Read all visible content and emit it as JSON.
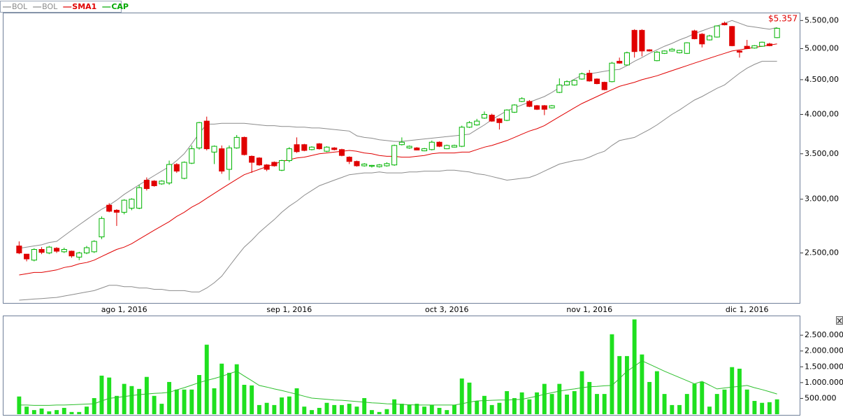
{
  "chart_data": [
    {
      "type": "candlestick",
      "log_scale": true,
      "grid": false,
      "annotation": "$5.357",
      "categories": [
        null,
        null,
        null,
        null,
        null,
        null,
        null,
        null,
        null,
        null,
        null,
        null,
        null,
        null,
        "ago 1, 2016",
        null,
        null,
        null,
        null,
        null,
        null,
        null,
        null,
        null,
        null,
        null,
        null,
        null,
        null,
        null,
        null,
        null,
        null,
        null,
        null,
        null,
        "sep 1, 2016",
        null,
        null,
        null,
        null,
        null,
        null,
        null,
        null,
        null,
        null,
        null,
        null,
        null,
        null,
        null,
        null,
        null,
        null,
        null,
        null,
        "oct 3, 2016",
        null,
        null,
        null,
        null,
        null,
        null,
        null,
        null,
        null,
        null,
        null,
        null,
        null,
        null,
        null,
        null,
        null,
        null,
        "nov 1, 2016",
        null,
        null,
        null,
        null,
        null,
        null,
        null,
        null,
        null,
        null,
        null,
        null,
        null,
        null,
        null,
        null,
        null,
        null,
        null,
        null,
        "dic 1, 2016",
        null,
        null,
        null,
        null
      ],
      "candles": {
        "name": "CAP",
        "color": "#00a800",
        "up_color": "#00b400",
        "down_color": "#e00000",
        "open": [
          2560,
          2490,
          2440,
          2530,
          2500,
          2540,
          2510,
          2515,
          2465,
          2500,
          2510,
          2640,
          2940,
          2890,
          2870,
          2910,
          2910,
          3200,
          3190,
          3160,
          3170,
          3375,
          3220,
          3390,
          3570,
          3910,
          3520,
          3560,
          3320,
          3570,
          3700,
          3470,
          3450,
          3370,
          3400,
          3310,
          3420,
          3610,
          3610,
          3550,
          3620,
          3530,
          3570,
          3550,
          3460,
          3410,
          3360,
          3355,
          3350,
          3360,
          3370,
          3610,
          3570,
          3570,
          3535,
          3550,
          3640,
          3560,
          3580,
          3590,
          3830,
          3860,
          3950,
          3990,
          3940,
          3920,
          4030,
          4180,
          4180,
          4120,
          4120,
          4090,
          4310,
          4420,
          4420,
          4510,
          4600,
          4510,
          4460,
          4470,
          4790,
          4730,
          5320,
          5320,
          4980,
          4800,
          4920,
          4960,
          4930,
          4920,
          5310,
          5250,
          5150,
          5200,
          5450,
          5390,
          4960,
          5040,
          5010,
          5040,
          5080,
          5190
        ],
        "high": [
          2600,
          2490,
          2540,
          2550,
          2560,
          2550,
          2545,
          2520,
          2510,
          2560,
          2610,
          2830,
          2960,
          2900,
          3000,
          3010,
          3150,
          3230,
          3200,
          3200,
          3420,
          3390,
          3410,
          3600,
          3900,
          3970,
          3600,
          3600,
          3600,
          3730,
          3710,
          3480,
          3460,
          3380,
          3410,
          3430,
          3580,
          3700,
          3620,
          3590,
          3630,
          3590,
          3580,
          3560,
          3470,
          3420,
          3390,
          3370,
          3380,
          3400,
          3610,
          3700,
          3600,
          3580,
          3570,
          3660,
          3650,
          3610,
          3610,
          3850,
          3910,
          3940,
          4040,
          4010,
          3950,
          4070,
          4140,
          4240,
          4200,
          4130,
          4130,
          4130,
          4520,
          4490,
          4500,
          4610,
          4650,
          4520,
          4470,
          4780,
          4850,
          4950,
          5340,
          5340,
          4990,
          4960,
          4970,
          5010,
          4980,
          5110,
          5330,
          5270,
          5240,
          5410,
          5480,
          5400,
          4970,
          5150,
          5060,
          5120,
          5100,
          5370
        ],
        "low": [
          2490,
          2430,
          2430,
          2490,
          2490,
          2500,
          2500,
          2460,
          2440,
          2490,
          2500,
          2620,
          2870,
          2740,
          2850,
          2890,
          2900,
          3090,
          3130,
          3150,
          3150,
          3280,
          3210,
          3380,
          3550,
          3540,
          3380,
          3270,
          3200,
          3560,
          3480,
          3280,
          3360,
          3300,
          3350,
          3300,
          3400,
          3510,
          3530,
          3540,
          3550,
          3520,
          3540,
          3470,
          3380,
          3350,
          3350,
          3340,
          3340,
          3350,
          3360,
          3600,
          3560,
          3540,
          3530,
          3540,
          3580,
          3555,
          3575,
          3580,
          3820,
          3850,
          3940,
          3900,
          3800,
          3910,
          4020,
          4170,
          4100,
          4060,
          3990,
          4080,
          4300,
          4410,
          4410,
          4500,
          4470,
          4430,
          4340,
          4460,
          4750,
          4720,
          4850,
          4870,
          4950,
          4790,
          4910,
          4950,
          4920,
          4910,
          5160,
          5020,
          5140,
          5190,
          5410,
          5040,
          4850,
          4990,
          5000,
          5030,
          5040,
          5180
        ],
        "close": [
          2500,
          2450,
          2530,
          2505,
          2550,
          2515,
          2530,
          2475,
          2500,
          2545,
          2600,
          2810,
          2880,
          2870,
          2990,
          3000,
          3120,
          3110,
          3140,
          3190,
          3375,
          3300,
          3400,
          3560,
          3890,
          3560,
          3590,
          3300,
          3570,
          3700,
          3490,
          3400,
          3370,
          3320,
          3360,
          3420,
          3560,
          3525,
          3540,
          3580,
          3560,
          3580,
          3550,
          3480,
          3410,
          3360,
          3380,
          3365,
          3370,
          3385,
          3600,
          3640,
          3590,
          3545,
          3560,
          3640,
          3590,
          3600,
          3600,
          3830,
          3890,
          3910,
          4000,
          3910,
          3890,
          4060,
          4130,
          4220,
          4110,
          4070,
          4070,
          4120,
          4420,
          4470,
          4490,
          4590,
          4480,
          4440,
          4350,
          4760,
          4760,
          4930,
          4950,
          4960,
          4960,
          4940,
          4960,
          4990,
          4970,
          5100,
          5170,
          5080,
          5220,
          5400,
          5420,
          5050,
          4940,
          5000,
          5050,
          5110,
          5050,
          5357
        ]
      },
      "series": [
        {
          "name": "BOL",
          "color": "#8c8c8c",
          "values": [
            2540,
            2550,
            2560,
            2570,
            2590,
            2600,
            2650,
            2700,
            2750,
            2800,
            2850,
            2900,
            2940,
            2990,
            3050,
            3100,
            3150,
            3200,
            3250,
            3300,
            3350,
            3420,
            3500,
            3620,
            3750,
            3870,
            3870,
            3880,
            3880,
            3880,
            3880,
            3870,
            3860,
            3850,
            3850,
            3840,
            3840,
            3830,
            3830,
            3820,
            3820,
            3810,
            3800,
            3790,
            3780,
            3720,
            3700,
            3690,
            3670,
            3660,
            3650,
            3650,
            3660,
            3670,
            3680,
            3690,
            3700,
            3710,
            3720,
            3730,
            3740,
            3800,
            3860,
            3930,
            3990,
            4050,
            4090,
            4130,
            4170,
            4210,
            4250,
            4310,
            4380,
            4440,
            4510,
            4570,
            4590,
            4610,
            4630,
            4650,
            4660,
            4720,
            4790,
            4850,
            4920,
            4980,
            5040,
            5090,
            5150,
            5200,
            5260,
            5310,
            5360,
            5400,
            5450,
            5500,
            5450,
            5400,
            5380,
            5360,
            5340,
            5370
          ]
        },
        {
          "name": "BOL",
          "color": "#8c8c8c",
          "values": [
            2130,
            2134,
            2138,
            2142,
            2146,
            2150,
            2160,
            2170,
            2180,
            2190,
            2200,
            2220,
            2240,
            2240,
            2230,
            2230,
            2220,
            2220,
            2210,
            2210,
            2200,
            2200,
            2200,
            2190,
            2190,
            2220,
            2260,
            2310,
            2390,
            2470,
            2550,
            2610,
            2680,
            2740,
            2800,
            2870,
            2930,
            2980,
            3040,
            3090,
            3140,
            3170,
            3200,
            3230,
            3260,
            3270,
            3280,
            3280,
            3290,
            3280,
            3280,
            3280,
            3290,
            3290,
            3300,
            3300,
            3300,
            3310,
            3310,
            3300,
            3290,
            3270,
            3260,
            3240,
            3220,
            3200,
            3210,
            3220,
            3230,
            3260,
            3300,
            3340,
            3380,
            3400,
            3420,
            3430,
            3460,
            3500,
            3530,
            3600,
            3660,
            3680,
            3700,
            3750,
            3800,
            3860,
            3930,
            4000,
            4060,
            4130,
            4200,
            4250,
            4310,
            4370,
            4420,
            4510,
            4600,
            4680,
            4740,
            4790,
            4790,
            4790
          ]
        },
        {
          "name": "SMA1",
          "color": "#e00000",
          "values": [
            2320,
            2330,
            2340,
            2340,
            2350,
            2360,
            2380,
            2390,
            2410,
            2420,
            2440,
            2470,
            2500,
            2530,
            2550,
            2580,
            2620,
            2660,
            2700,
            2740,
            2780,
            2830,
            2870,
            2920,
            2960,
            3010,
            3060,
            3110,
            3160,
            3210,
            3260,
            3290,
            3320,
            3350,
            3380,
            3410,
            3430,
            3450,
            3460,
            3480,
            3500,
            3510,
            3520,
            3530,
            3540,
            3530,
            3510,
            3500,
            3480,
            3470,
            3470,
            3460,
            3460,
            3470,
            3480,
            3500,
            3510,
            3510,
            3510,
            3520,
            3520,
            3550,
            3580,
            3600,
            3630,
            3660,
            3700,
            3740,
            3780,
            3810,
            3850,
            3910,
            3970,
            4030,
            4090,
            4150,
            4200,
            4250,
            4300,
            4350,
            4400,
            4430,
            4460,
            4500,
            4530,
            4560,
            4600,
            4640,
            4680,
            4720,
            4760,
            4800,
            4840,
            4880,
            4920,
            4960,
            4980,
            5000,
            5020,
            5040,
            5060,
            5080
          ]
        }
      ],
      "ylim": [
        2110,
        5650
      ],
      "yticks": [
        {
          "value": 2500,
          "label": "2.500,00"
        },
        {
          "value": 3000,
          "label": "3.000,00"
        },
        {
          "value": 3500,
          "label": "3.500,00"
        },
        {
          "value": 4000,
          "label": "4.000,00"
        },
        {
          "value": 4500,
          "label": "4.500,00"
        },
        {
          "value": 5000,
          "label": "5.000,00"
        },
        {
          "value": 5500,
          "label": "5.500,00"
        }
      ]
    },
    {
      "type": "bar",
      "color": "#1fe01f",
      "grid": false,
      "values": [
        560000,
        240000,
        130000,
        180000,
        90000,
        130000,
        200000,
        70000,
        70000,
        240000,
        510000,
        1220000,
        1160000,
        580000,
        960000,
        890000,
        800000,
        1180000,
        580000,
        330000,
        1020000,
        780000,
        780000,
        780000,
        1240000,
        2200000,
        820000,
        1600000,
        1310000,
        1580000,
        930000,
        910000,
        290000,
        360000,
        290000,
        530000,
        560000,
        820000,
        240000,
        130000,
        200000,
        360000,
        290000,
        290000,
        330000,
        240000,
        510000,
        130000,
        70000,
        160000,
        470000,
        330000,
        290000,
        330000,
        240000,
        290000,
        200000,
        130000,
        290000,
        1130000,
        1000000,
        420000,
        580000,
        290000,
        360000,
        730000,
        510000,
        690000,
        470000,
        690000,
        960000,
        640000,
        960000,
        620000,
        730000,
        1360000,
        1020000,
        640000,
        640000,
        2530000,
        1840000,
        1840000,
        3000000,
        1890000,
        1020000,
        1360000,
        640000,
        290000,
        290000,
        640000,
        960000,
        1020000,
        240000,
        640000,
        780000,
        1490000,
        1440000,
        780000,
        420000,
        360000,
        380000,
        470000
      ],
      "series": [
        {
          "color": "#2cbf2c",
          "values": [
            290000,
            290000,
            280000,
            280000,
            280000,
            290000,
            290000,
            300000,
            310000,
            320000,
            330000,
            420000,
            500000,
            530000,
            560000,
            590000,
            620000,
            640000,
            660000,
            670000,
            690000,
            770000,
            840000,
            920000,
            1000000,
            1070000,
            1130000,
            1200000,
            1280000,
            1360000,
            1210000,
            1060000,
            910000,
            860000,
            800000,
            750000,
            690000,
            630000,
            570000,
            510000,
            490000,
            470000,
            450000,
            440000,
            420000,
            400000,
            380000,
            360000,
            350000,
            330000,
            320000,
            310000,
            300000,
            290000,
            290000,
            290000,
            290000,
            290000,
            290000,
            330000,
            380000,
            420000,
            430000,
            440000,
            450000,
            450000,
            460000,
            470000,
            520000,
            570000,
            630000,
            680000,
            730000,
            770000,
            800000,
            840000,
            870000,
            880000,
            900000,
            910000,
            1130000,
            1360000,
            1520000,
            1690000,
            1580000,
            1470000,
            1360000,
            1260000,
            1160000,
            1060000,
            960000,
            1040000,
            920000,
            800000,
            830000,
            860000,
            880000,
            910000,
            840000,
            780000,
            710000,
            640000
          ]
        }
      ],
      "ylim": [
        0,
        3100000
      ],
      "yticks": [
        {
          "value": 500000,
          "label": "500.000"
        },
        {
          "value": 1000000,
          "label": "1.000.000"
        },
        {
          "value": 1500000,
          "label": "1.500.000"
        },
        {
          "value": 2000000,
          "label": "2.000.000"
        },
        {
          "value": 2500000,
          "label": "2.500.000"
        }
      ]
    }
  ]
}
